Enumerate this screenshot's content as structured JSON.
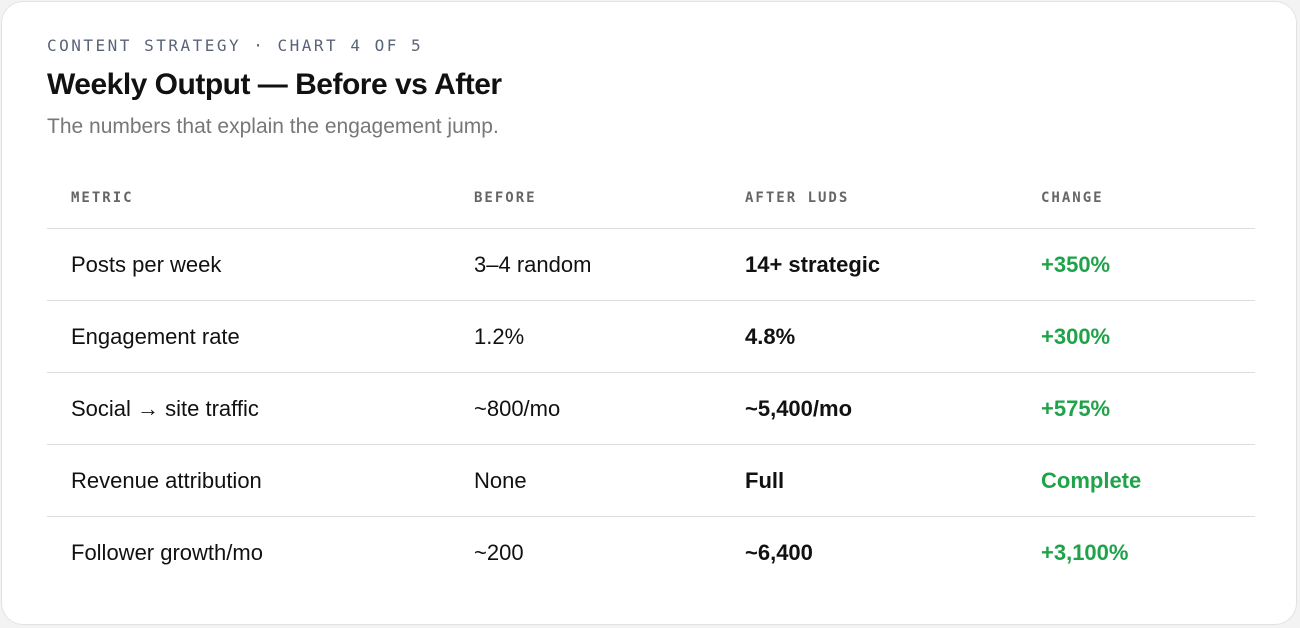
{
  "header": {
    "eyebrow": "CONTENT STRATEGY · CHART 4 OF 5",
    "title": "Weekly Output — Before vs After",
    "subtitle": "The numbers that explain the engagement jump."
  },
  "table": {
    "columns": [
      "METRIC",
      "BEFORE",
      "AFTER LUDS",
      "CHANGE"
    ],
    "rows": [
      [
        "Posts per week",
        "3–4 random",
        "14+ strategic",
        "+350%"
      ],
      [
        "Engagement rate",
        "1.2%",
        "4.8%",
        "+300%"
      ],
      [
        "Social → site traffic",
        "~800/mo",
        "~5,400/mo",
        "+575%"
      ],
      [
        "Revenue attribution",
        "None",
        "Full",
        "Complete"
      ],
      [
        "Follower growth/mo",
        "~200",
        "~6,400",
        "+3,100%"
      ]
    ]
  }
}
